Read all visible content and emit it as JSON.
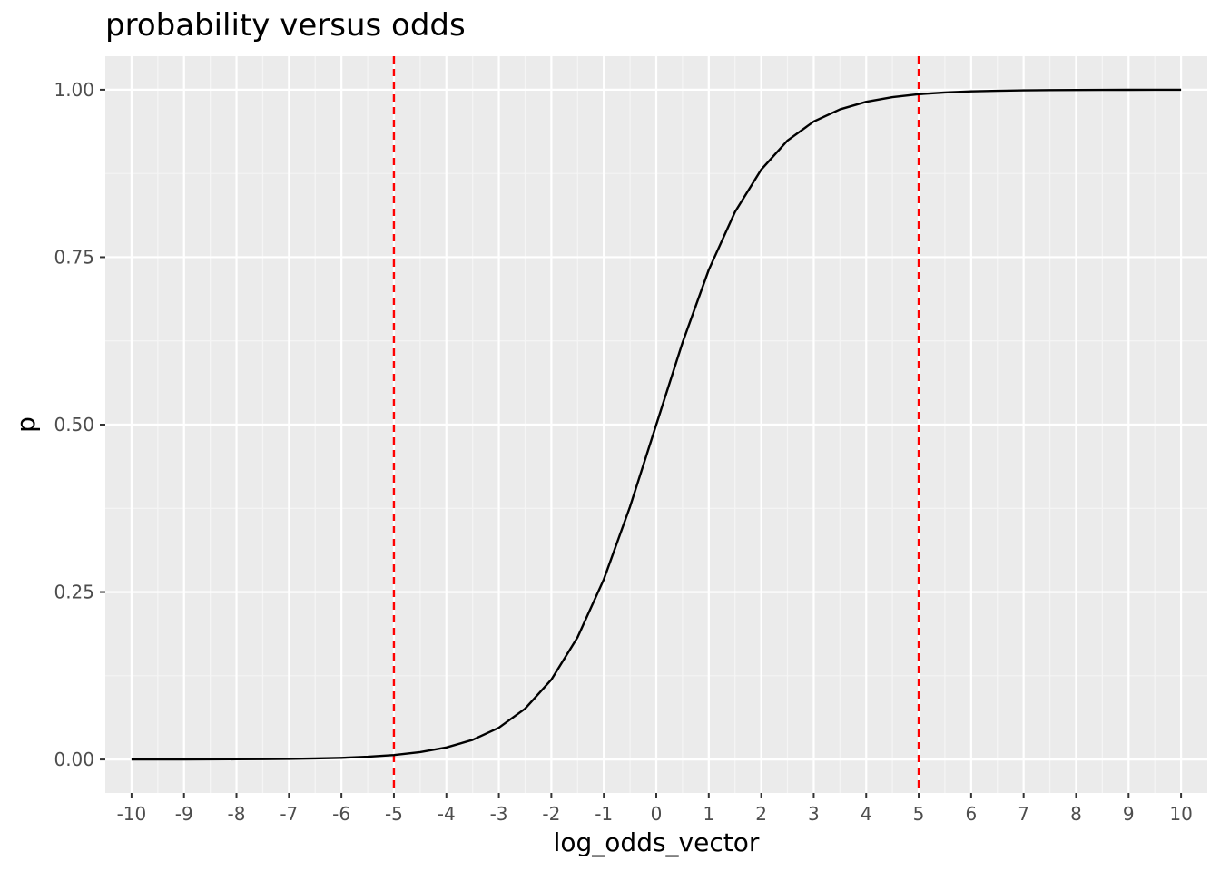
{
  "chart_data": {
    "type": "line",
    "title": "probability versus odds",
    "xlabel": "log_odds_vector",
    "ylabel": "p",
    "xlim": [
      -10.5,
      10.5
    ],
    "ylim": [
      -0.05,
      1.05
    ],
    "x_ticks": [
      -10,
      -9,
      -8,
      -7,
      -6,
      -5,
      -4,
      -3,
      -2,
      -1,
      0,
      1,
      2,
      3,
      4,
      5,
      6,
      7,
      8,
      9,
      10
    ],
    "x_tick_labels": [
      "-10",
      "-9",
      "-8",
      "-7",
      "-6",
      "-5",
      "-4",
      "-3",
      "-2",
      "-1",
      "0",
      "1",
      "2",
      "3",
      "4",
      "5",
      "6",
      "7",
      "8",
      "9",
      "10"
    ],
    "y_ticks": [
      0,
      0.25,
      0.5,
      0.75,
      1
    ],
    "y_tick_labels": [
      "0.00",
      "0.25",
      "0.50",
      "0.75",
      "1.00"
    ],
    "grid": true,
    "series": [
      {
        "color": "#000000",
        "x": [
          -10,
          -9.5,
          -9,
          -8.5,
          -8,
          -7.5,
          -7,
          -6.5,
          -6,
          -5.5,
          -5,
          -4.5,
          -4,
          -3.5,
          -3,
          -2.5,
          -2,
          -1.5,
          -1,
          -0.5,
          0,
          0.5,
          1,
          1.5,
          2,
          2.5,
          3,
          3.5,
          4,
          4.5,
          5,
          5.5,
          6,
          6.5,
          7,
          7.5,
          8,
          8.5,
          9,
          9.5,
          10
        ],
        "y": [
          4.54e-05,
          7.49e-05,
          0.0001234,
          0.0002035,
          0.0003354,
          0.0005527,
          0.0009111,
          0.0015011,
          0.0024726,
          0.0040701,
          0.0066929,
          0.0109869,
          0.0179862,
          0.0293122,
          0.0474259,
          0.0758582,
          0.1192029,
          0.1824255,
          0.2689414,
          0.3775407,
          0.5,
          0.6224593,
          0.7310586,
          0.8175745,
          0.8807971,
          0.9241418,
          0.9525741,
          0.9706878,
          0.9820138,
          0.9890131,
          0.9933071,
          0.9959299,
          0.9975274,
          0.9984989,
          0.9990889,
          0.9994473,
          0.9996646,
          0.9997965,
          0.9998766,
          0.9999251,
          0.9999546
        ]
      }
    ],
    "vlines": [
      {
        "x": -5,
        "color": "#ff0000",
        "style": "dashed"
      },
      {
        "x": 5,
        "color": "#ff0000",
        "style": "dashed"
      }
    ],
    "colors": {
      "panel_background": "#ebebeb",
      "grid_major": "#ffffff",
      "grid_minor": "#f5f5f5",
      "tick_text": "#4d4d4d",
      "tick_mark": "#333333"
    }
  }
}
